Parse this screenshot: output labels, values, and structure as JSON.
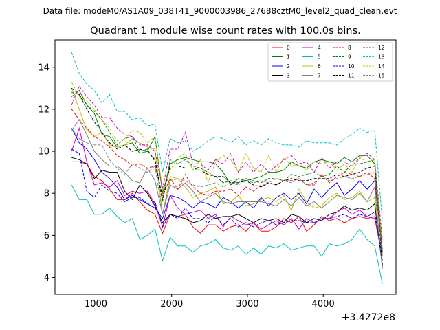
{
  "chart_data": {
    "type": "line",
    "suptitle": "Data file: modeM0/AS1A09_038T41_9000003986_27688cztM0_level2_quad_clean.evt",
    "title": "Quadrant 1 module wise count rates with 100.0s bins.",
    "xlabel": "",
    "ylabel": "",
    "x_offset_label": "+3.4272e8",
    "xlim": [
      460,
      4960
    ],
    "ylim": [
      3.2,
      15.3
    ],
    "xticks": [
      1000,
      2000,
      3000,
      4000
    ],
    "yticks": [
      4,
      6,
      8,
      10,
      12,
      14
    ],
    "x": [
      680,
      780,
      880,
      980,
      1080,
      1180,
      1280,
      1380,
      1480,
      1580,
      1680,
      1780,
      1880,
      1980,
      2080,
      2180,
      2280,
      2380,
      2480,
      2580,
      2680,
      2780,
      2880,
      2980,
      3080,
      3180,
      3280,
      3380,
      3480,
      3580,
      3680,
      3780,
      3880,
      3980,
      4080,
      4180,
      4280,
      4380,
      4480,
      4580,
      4680,
      4780
    ],
    "series": [
      {
        "name": "0",
        "color": "#ff0000",
        "dash": "solid",
        "values": [
          9.5,
          9.5,
          9.4,
          8.8,
          8.6,
          8.2,
          7.7,
          7.7,
          8.0,
          7.6,
          7.2,
          7.0,
          6.1,
          7.0,
          6.9,
          7.0,
          6.4,
          6.1,
          6.5,
          6.5,
          6.2,
          6.4,
          6.5,
          6.2,
          6.6,
          6.2,
          6.2,
          6.4,
          6.8,
          6.6,
          6.9,
          6.2,
          6.5,
          6.9,
          6.7,
          6.8,
          6.6,
          6.8,
          6.9,
          6.8,
          6.9,
          5.0
        ]
      },
      {
        "name": "1",
        "color": "#008000",
        "dash": "solid",
        "values": [
          12.6,
          12.9,
          12.2,
          11.8,
          10.8,
          10.7,
          10.2,
          10.3,
          10.4,
          9.9,
          10.0,
          10.7,
          8.0,
          9.4,
          9.6,
          9.7,
          9.6,
          9.5,
          9.5,
          9.4,
          9.0,
          8.4,
          8.7,
          8.6,
          8.7,
          8.8,
          9.0,
          9.0,
          9.1,
          9.5,
          9.3,
          9.2,
          9.5,
          9.6,
          9.5,
          9.4,
          9.7,
          9.5,
          9.8,
          9.8,
          9.4,
          5.2
        ]
      },
      {
        "name": "2",
        "color": "#0000ff",
        "dash": "solid",
        "values": [
          11.1,
          10.4,
          10.1,
          9.6,
          9.0,
          8.7,
          8.3,
          7.7,
          7.9,
          7.7,
          7.5,
          7.3,
          6.8,
          7.9,
          7.8,
          7.6,
          7.3,
          7.6,
          7.5,
          7.3,
          7.8,
          7.6,
          7.3,
          7.6,
          7.3,
          7.8,
          7.4,
          7.8,
          8.0,
          7.7,
          8.0,
          7.5,
          8.2,
          7.8,
          8.2,
          8.5,
          7.9,
          8.2,
          8.6,
          8.2,
          8.6,
          5.3
        ]
      },
      {
        "name": "3",
        "color": "#000000",
        "dash": "solid",
        "values": [
          9.7,
          9.6,
          9.4,
          8.7,
          9.1,
          9.0,
          9.0,
          8.1,
          7.7,
          8.4,
          8.0,
          7.4,
          6.6,
          7.0,
          6.9,
          6.8,
          6.6,
          6.7,
          7.0,
          6.8,
          6.9,
          6.9,
          7.0,
          6.8,
          6.6,
          6.8,
          6.7,
          6.8,
          6.6,
          7.0,
          6.9,
          6.6,
          6.8,
          6.7,
          7.0,
          7.1,
          7.4,
          7.2,
          7.3,
          7.2,
          7.5,
          4.5
        ]
      },
      {
        "name": "4",
        "color": "#cc00cc",
        "dash": "solid",
        "values": [
          10.0,
          11.1,
          9.5,
          8.4,
          8.5,
          8.3,
          8.6,
          7.9,
          8.1,
          8.0,
          8.1,
          7.5,
          6.4,
          7.9,
          7.3,
          7.0,
          7.1,
          7.2,
          6.8,
          7.0,
          6.4,
          6.9,
          6.7,
          6.5,
          6.6,
          6.3,
          6.5,
          6.7,
          6.5,
          6.8,
          6.3,
          6.8,
          6.6,
          6.8,
          6.8,
          7.1,
          7.3,
          7.0,
          7.2,
          6.9,
          6.8,
          5.0
        ]
      },
      {
        "name": "5",
        "color": "#00bfbf",
        "dash": "solid",
        "values": [
          8.4,
          7.7,
          7.7,
          7.0,
          7.0,
          7.3,
          6.9,
          6.6,
          6.8,
          5.8,
          6.0,
          6.3,
          4.8,
          5.9,
          5.5,
          5.5,
          5.2,
          5.5,
          5.6,
          5.8,
          5.4,
          5.3,
          5.5,
          5.1,
          5.4,
          5.1,
          5.5,
          5.4,
          5.6,
          5.3,
          5.4,
          5.5,
          5.5,
          5.0,
          5.6,
          5.5,
          5.6,
          5.8,
          6.3,
          5.8,
          5.5,
          3.7
        ]
      },
      {
        "name": "6",
        "color": "#bfbf00",
        "dash": "solid",
        "values": [
          13.0,
          12.0,
          11.0,
          10.7,
          10.9,
          10.3,
          10.2,
          10.3,
          10.6,
          10.4,
          10.2,
          10.1,
          7.0,
          8.8,
          8.7,
          8.3,
          7.8,
          8.0,
          8.1,
          8.3,
          7.5,
          7.6,
          7.9,
          7.4,
          7.5,
          7.7,
          7.8,
          7.6,
          7.9,
          7.2,
          8.2,
          7.6,
          7.3,
          7.4,
          7.8,
          8.0,
          7.7,
          7.8,
          8.1,
          7.6,
          7.8,
          4.6
        ]
      },
      {
        "name": "7",
        "color": "#808080",
        "dash": "solid",
        "values": [
          11.0,
          11.5,
          10.8,
          10.0,
          9.6,
          9.3,
          9.3,
          9.0,
          8.6,
          8.5,
          9.2,
          8.6,
          7.0,
          8.4,
          8.2,
          8.5,
          8.1,
          7.6,
          7.8,
          8.0,
          7.6,
          7.5,
          7.6,
          7.6,
          7.6,
          7.6,
          7.5,
          7.4,
          7.7,
          7.4,
          7.8,
          7.4,
          7.6,
          7.3,
          7.6,
          7.9,
          7.8,
          7.7,
          8.0,
          7.6,
          8.3,
          4.4
        ]
      },
      {
        "name": "8",
        "color": "#ff0000",
        "dash": "dashed",
        "values": [
          12.0,
          11.5,
          11.1,
          10.7,
          10.5,
          10.2,
          9.8,
          9.6,
          9.3,
          9.4,
          9.2,
          9.3,
          7.9,
          8.7,
          8.2,
          8.9,
          8.3,
          8.0,
          7.9,
          8.1,
          8.1,
          8.2,
          7.9,
          8.3,
          8.1,
          8.4,
          8.5,
          8.4,
          8.6,
          8.6,
          8.7,
          8.4,
          8.4,
          8.9,
          8.5,
          8.8,
          9.0,
          8.9,
          8.8,
          9.0,
          8.7,
          5.1
        ]
      },
      {
        "name": "9",
        "color": "#008000",
        "dash": "dashed",
        "values": [
          12.8,
          12.7,
          12.2,
          11.9,
          11.5,
          10.9,
          10.3,
          10.6,
          10.7,
          10.0,
          10.1,
          9.5,
          7.6,
          9.6,
          9.4,
          9.6,
          9.3,
          9.2,
          9.0,
          8.8,
          8.5,
          8.6,
          8.5,
          8.7,
          8.6,
          8.5,
          8.7,
          8.7,
          8.6,
          8.9,
          8.8,
          8.9,
          9.0,
          8.8,
          8.9,
          9.3,
          9.0,
          9.4,
          9.4,
          9.5,
          9.6,
          5.3
        ]
      },
      {
        "name": "10",
        "color": "#0000ff",
        "dash": "dashed",
        "values": [
          10.1,
          9.9,
          8.1,
          7.8,
          8.4,
          8.1,
          8.0,
          7.6,
          7.8,
          7.8,
          7.5,
          7.6,
          6.4,
          7.0,
          6.8,
          7.3,
          6.8,
          6.8,
          6.6,
          6.9,
          6.5,
          6.8,
          6.4,
          6.6,
          6.4,
          6.6,
          6.7,
          6.5,
          6.6,
          6.7,
          6.7,
          6.6,
          6.6,
          6.8,
          6.8,
          6.9,
          7.0,
          6.8,
          7.0,
          6.9,
          7.1,
          4.8
        ]
      },
      {
        "name": "11",
        "color": "#000000",
        "dash": "dashed",
        "values": [
          13.0,
          12.7,
          12.0,
          11.4,
          10.9,
          10.4,
          10.1,
          10.3,
          10.0,
          10.1,
          10.0,
          9.6,
          7.7,
          9.3,
          9.3,
          9.2,
          9.2,
          9.1,
          8.9,
          8.8,
          8.8,
          8.5,
          8.5,
          8.6,
          8.4,
          8.3,
          8.5,
          8.4,
          8.6,
          8.7,
          8.6,
          8.6,
          8.7,
          8.7,
          8.7,
          8.9,
          8.8,
          8.9,
          9.0,
          9.2,
          9.3,
          4.6
        ]
      },
      {
        "name": "12",
        "color": "#cc00cc",
        "dash": "dashed",
        "values": [
          12.2,
          13.1,
          12.6,
          12.2,
          11.6,
          11.6,
          11.1,
          10.8,
          10.7,
          10.3,
          10.3,
          10.0,
          8.2,
          10.1,
          10.1,
          10.9,
          9.4,
          9.4,
          9.1,
          9.6,
          9.4,
          9.9,
          9.0,
          9.5,
          9.0,
          9.4,
          9.0,
          9.3,
          9.6,
          9.8,
          9.4,
          9.5,
          9.0,
          9.7,
          9.2,
          9.5,
          9.5,
          9.3,
          9.7,
          9.9,
          9.6,
          5.8
        ]
      },
      {
        "name": "13",
        "color": "#00bfbf",
        "dash": "dashed",
        "values": [
          14.7,
          13.7,
          13.2,
          12.9,
          12.3,
          12.7,
          11.9,
          11.9,
          11.5,
          11.6,
          11.2,
          11.3,
          9.0,
          10.6,
          10.4,
          10.5,
          10.0,
          10.2,
          10.5,
          10.7,
          10.6,
          10.4,
          10.7,
          10.3,
          10.5,
          10.3,
          10.6,
          10.4,
          10.3,
          10.3,
          10.2,
          10.5,
          10.4,
          10.4,
          10.4,
          10.3,
          10.6,
          10.8,
          11.1,
          10.9,
          11.0,
          6.7
        ]
      },
      {
        "name": "14",
        "color": "#bfbf00",
        "dash": "dashed",
        "values": [
          13.3,
          12.6,
          12.4,
          12.0,
          11.5,
          11.1,
          10.5,
          10.6,
          11.0,
          10.9,
          10.4,
          10.7,
          8.2,
          9.1,
          9.7,
          9.9,
          9.1,
          9.6,
          8.5,
          9.5,
          9.8,
          9.6,
          9.0,
          9.9,
          9.2,
          9.0,
          9.8,
          9.0,
          9.7,
          9.3,
          9.4,
          9.1,
          9.5,
          9.4,
          9.5,
          9.1,
          9.4,
          9.0,
          9.7,
          9.5,
          9.6,
          5.5
        ]
      },
      {
        "name": "15",
        "color": "#808080",
        "dash": "dashed",
        "values": [
          11.1,
          10.6,
          10.4,
          10.3,
          10.3,
          9.6,
          9.2,
          8.9,
          9.4,
          9.2,
          9.0,
          9.3,
          7.0,
          8.6,
          8.7,
          8.6,
          8.4,
          8.3,
          8.4,
          8.5,
          8.3,
          8.5,
          8.4,
          8.6,
          8.5,
          8.6,
          8.5,
          8.7,
          8.6,
          8.5,
          8.7,
          8.4,
          8.5,
          8.8,
          8.6,
          8.7,
          8.8,
          8.7,
          8.8,
          8.9,
          9.0,
          5.0
        ]
      }
    ]
  }
}
